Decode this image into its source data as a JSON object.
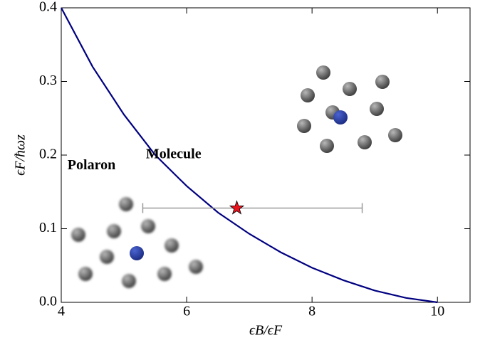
{
  "chart_data": {
    "type": "line",
    "xlabel": "ϵB/ϵF",
    "ylabel": "ϵF/ħωz",
    "x": [
      4,
      4.5,
      5,
      5.5,
      6,
      6.5,
      7,
      7.5,
      8,
      8.5,
      9,
      9.5,
      10
    ],
    "series": [
      {
        "color": "#000080",
        "values": [
          0.4,
          0.32,
          0.255,
          0.2,
          0.158,
          0.122,
          0.093,
          0.068,
          0.047,
          0.03,
          0.016,
          0.006,
          0
        ]
      }
    ],
    "points": {
      "x": [
        6.8
      ],
      "values": [
        0.128
      ],
      "xerr": [
        [
          1.5,
          2.0
        ]
      ],
      "color": "#e8141e",
      "bar_color": "#999999"
    },
    "annotations": [
      {
        "text": "Polaron",
        "x": 4.1,
        "y": 0.185
      },
      {
        "text": "Molecule",
        "x": 5.35,
        "y": 0.2
      }
    ],
    "xlim": [
      4,
      10.52
    ],
    "ylim": [
      0,
      0.4
    ],
    "xticks": [
      4,
      6,
      8,
      10
    ],
    "yticks": [
      {
        "value": 0,
        "label": "0.0"
      },
      0.1,
      0.2,
      0.3,
      0.4
    ]
  }
}
